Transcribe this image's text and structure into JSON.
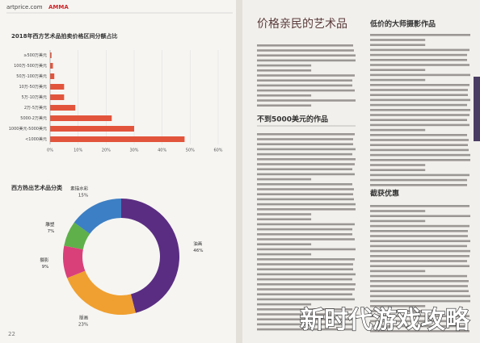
{
  "header": {
    "site": "artprice.com",
    "logo": "AMMA"
  },
  "chart_data": [
    {
      "type": "bar",
      "orientation": "horizontal",
      "title": "2018年西方艺术品拍卖价格区间分额占比",
      "categories": [
        "≥500万美元",
        "100万-500万美元",
        "50万-100万美元",
        "10万-50万美元",
        "5万-10万美元",
        "2万-5万美元",
        "5000-2万美元",
        "1000美元-5000美元",
        "<1000美元"
      ],
      "values": [
        0.5,
        1,
        1.5,
        5,
        5,
        9,
        22,
        30,
        48
      ],
      "color": "#e2553c",
      "xlim": [
        0,
        60
      ],
      "xticks": [
        {
          "value": 0,
          "label": "0%"
        },
        {
          "value": 10,
          "label": "10%"
        },
        {
          "value": 20,
          "label": "20%"
        },
        {
          "value": 30,
          "label": "30%"
        },
        {
          "value": 40,
          "label": "40%"
        },
        {
          "value": 50,
          "label": "50%"
        },
        {
          "value": 60,
          "label": "60%"
        }
      ],
      "grid": true
    },
    {
      "type": "pie",
      "donut": true,
      "title": "西方热出艺术品分类",
      "categories": [
        "油画",
        "版画",
        "摄影",
        "雕塑",
        "素描水彩"
      ],
      "values": [
        46,
        23,
        9,
        7,
        15
      ],
      "value_labels": [
        "46%",
        "23%",
        "9%",
        "7%",
        "15%"
      ],
      "colors": [
        "#5a2d82",
        "#f0a030",
        "#d9407a",
        "#5fb04a",
        "#3d7fc4"
      ]
    }
  ],
  "articles": {
    "main_title": "价格亲民的艺术品",
    "section1": "不到5000美元的作品",
    "side_title": "低价的大师摄影作品",
    "section2": "截获优惠"
  },
  "page_number": "22",
  "watermark": "新时代游戏攻略"
}
